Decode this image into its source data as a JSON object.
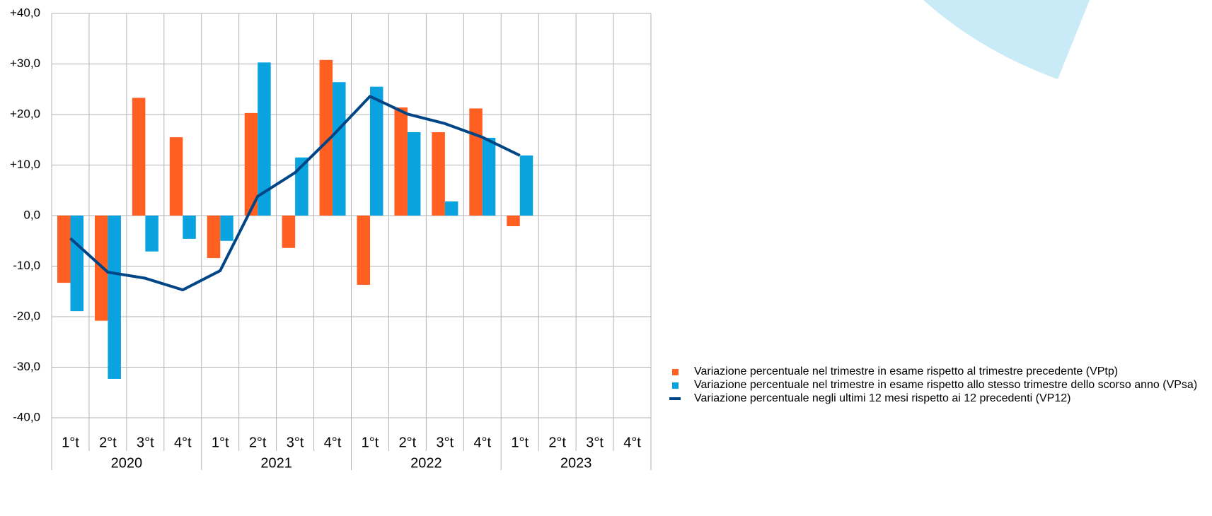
{
  "chart_data": {
    "type": "bar",
    "categories": [
      "1°t",
      "2°t",
      "3°t",
      "4°t",
      "1°t",
      "2°t",
      "3°t",
      "4°t",
      "1°t",
      "2°t",
      "3°t",
      "4°t",
      "1°t",
      "2°t",
      "3°t",
      "4°t"
    ],
    "years": [
      "2020",
      "2021",
      "2022",
      "2023"
    ],
    "series": [
      {
        "name": "Variazione percentuale nel trimestre in esame rispetto al trimestre precedente (VPtp)",
        "type": "bar",
        "color": "#ff5f20",
        "values": [
          -13.3,
          -20.8,
          23.3,
          15.5,
          -8.4,
          20.3,
          -6.4,
          30.8,
          -13.7,
          21.4,
          16.5,
          21.2,
          -2.1,
          null,
          null,
          null
        ]
      },
      {
        "name": "Variazione percentuale nel trimestre in esame rispetto allo stesso trimestre dello scorso anno (VPsa)",
        "type": "bar",
        "color": "#0aa3e0",
        "values": [
          -18.9,
          -32.3,
          -7.1,
          -4.6,
          -5.0,
          30.3,
          11.5,
          26.4,
          25.5,
          16.5,
          2.8,
          15.4,
          11.9,
          null,
          null,
          null
        ]
      },
      {
        "name": "Variazione percentuale negli ultimi 12 mesi rispetto ai 12 precedenti (VP12)",
        "type": "line",
        "color": "#004586",
        "values": [
          -4.5,
          -11.2,
          -12.4,
          -14.7,
          -10.9,
          3.8,
          8.5,
          15.8,
          23.6,
          20.1,
          18.2,
          15.5,
          11.9,
          null,
          null,
          null
        ]
      }
    ],
    "ylim": [
      -40,
      40
    ],
    "yticks": [
      {
        "value": 40,
        "label": "+40,0"
      },
      {
        "value": 30,
        "label": "+30,0"
      },
      {
        "value": 20,
        "label": "+20,0"
      },
      {
        "value": 10,
        "label": "+10,0"
      },
      {
        "value": 0,
        "label": "0,0"
      },
      {
        "value": -10,
        "label": "-10,0"
      },
      {
        "value": -20,
        "label": "-20,0"
      },
      {
        "value": -30,
        "label": "-30,0"
      },
      {
        "value": -40,
        "label": "-40,0"
      }
    ],
    "grid": true,
    "legend": "bottom-right"
  }
}
